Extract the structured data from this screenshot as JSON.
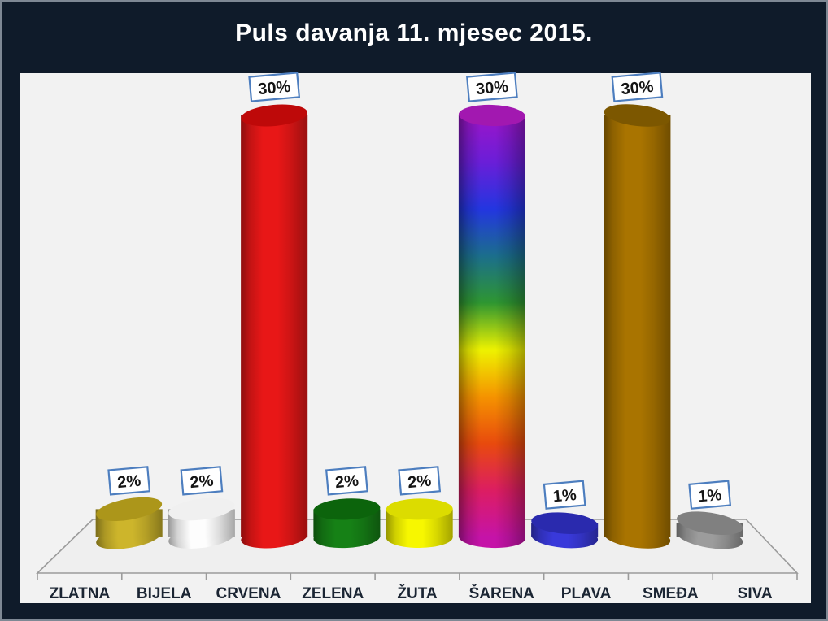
{
  "page": {
    "background": "#0F1B2A",
    "frame_border": "#7E8894"
  },
  "chart_data": {
    "type": "bar",
    "variant": "3d-cylinder",
    "title": "Puls davanja 11. mjesec 2015.",
    "title_color": "#FFFFFF",
    "plot_background": "#F2F2F2",
    "categories": [
      "ZLATNA",
      "BIJELA",
      "CRVENA",
      "ZELENA",
      "ŽUTA",
      "ŠARENA",
      "PLAVA",
      "SMEĐA",
      "SIVA"
    ],
    "values": [
      2,
      2,
      30,
      2,
      2,
      30,
      1,
      30,
      1
    ],
    "data_labels": [
      "2%",
      "2%",
      "30%",
      "2%",
      "2%",
      "30%",
      "1%",
      "30%",
      "1%"
    ],
    "ylim": [
      0,
      32
    ],
    "value_axis_visible": false,
    "gridlines": false,
    "legend": false,
    "axis_color": "#9B9B9B",
    "category_label_color": "#1B2533",
    "data_label_style": {
      "fill": "#FFFFFF",
      "border": "#4D7EBF",
      "text_color": "#151515"
    },
    "bar_colors": [
      {
        "body": "#CDB52B",
        "top": "#AC961A"
      },
      {
        "body": "#FDFDFD",
        "top": "#F0F0F0"
      },
      {
        "body": "#E81717",
        "top": "#BE0909"
      },
      {
        "body": "#168116",
        "top": "#0C640C"
      },
      {
        "body": "#F7F700",
        "top": "#DCDC00"
      },
      {
        "body": "rainbow",
        "top": "#A218B0"
      },
      {
        "body": "#3939DA",
        "top": "#2A2AAE"
      },
      {
        "body": "#A97400",
        "top": "#7C5700"
      },
      {
        "body": "#9C9C9C",
        "top": "#808080"
      }
    ],
    "rainbow_gradient": [
      "#9C15C9",
      "#6A1ED8",
      "#2336E0",
      "#1B6E8C",
      "#2E9631",
      "#EEF200",
      "#F59300",
      "#E84A0D",
      "#DC1D62",
      "#C513A8"
    ]
  }
}
